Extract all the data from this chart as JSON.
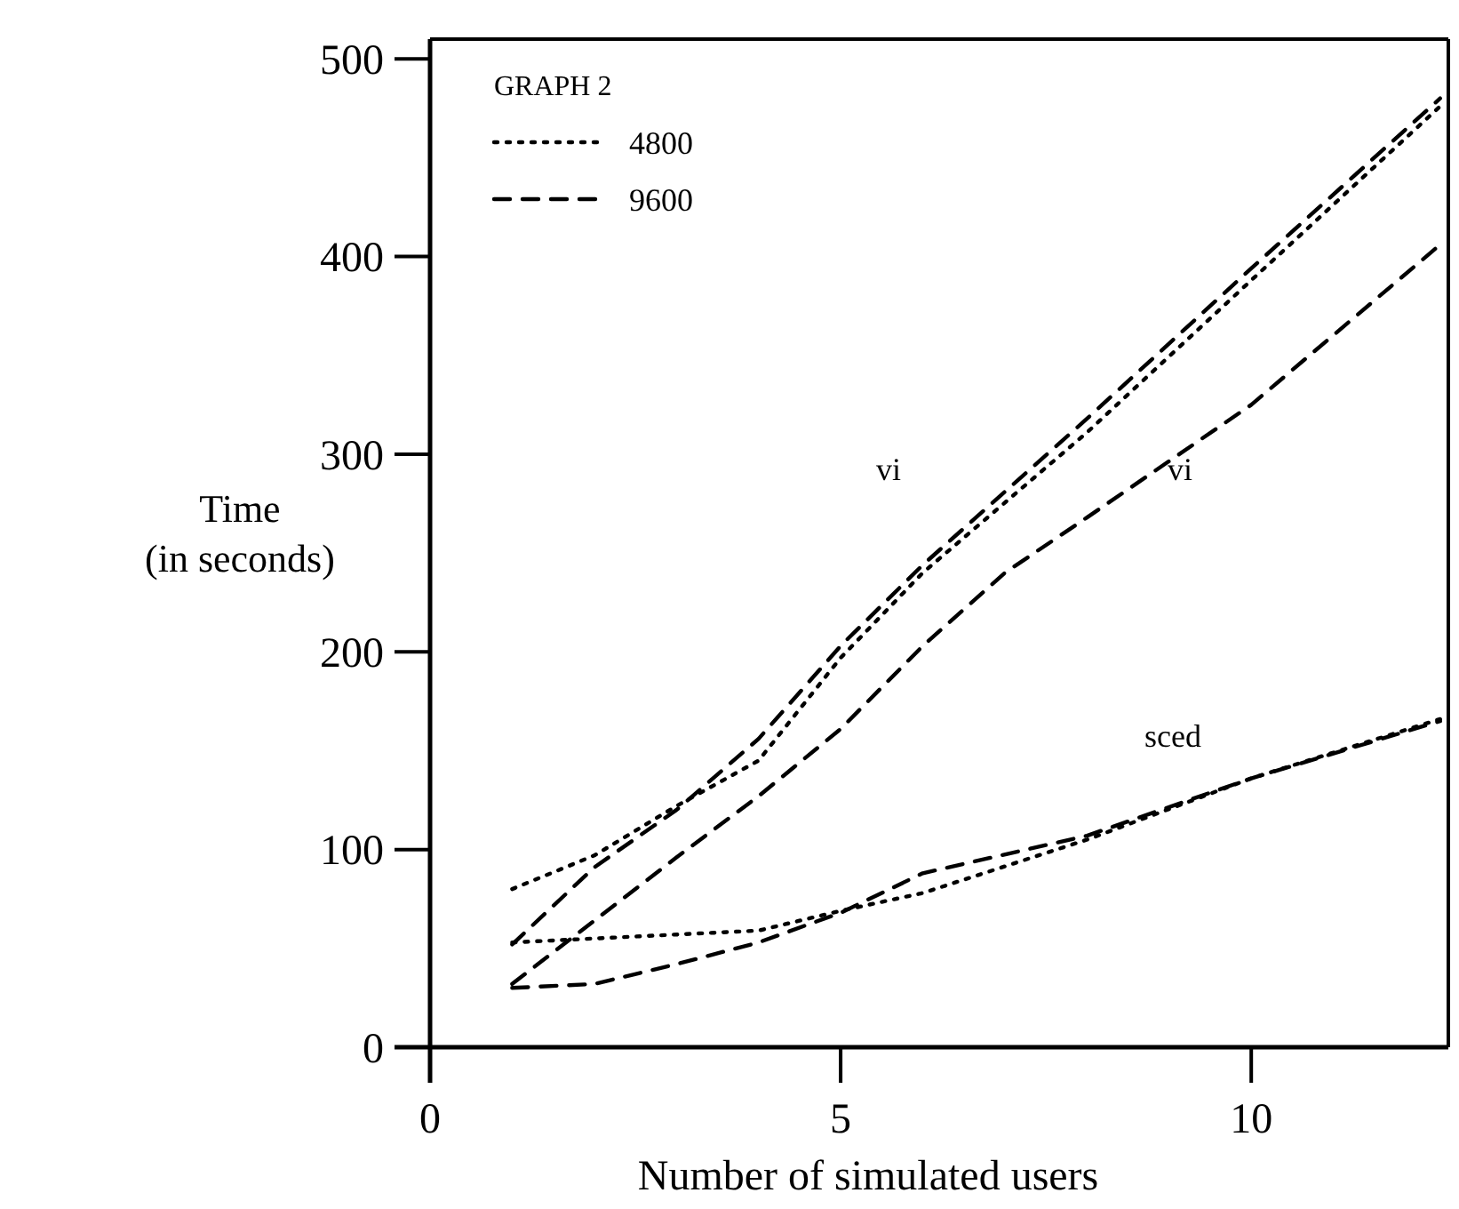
{
  "chart_data": {
    "type": "line",
    "xlabel": "Number of simulated users",
    "ylabel": "Time\n(in seconds)",
    "legend_title": "GRAPH 2",
    "legend": "top left",
    "grid": false,
    "xlim": [
      0,
      12.4
    ],
    "ylim": [
      0,
      510
    ],
    "xticks": [
      0,
      5,
      10
    ],
    "yticks": [
      0,
      100,
      200,
      300,
      400,
      500
    ],
    "x": [
      1,
      2,
      3,
      4,
      5,
      6,
      8,
      10,
      12.3
    ],
    "series": [
      {
        "name": "4800",
        "color": "#000000",
        "line_style": "dotted",
        "values": [
          80,
          97,
          122,
          145,
          197,
          240,
          311,
          388,
          476
        ]
      },
      {
        "name": "9600",
        "color": "#000000",
        "line_style": "dashed",
        "values": [
          52,
          91,
          120,
          156,
          203,
          244,
          318,
          394,
          480
        ]
      },
      {
        "color": "#000000",
        "line_style": "dashed",
        "x": [
          1,
          2,
          3,
          4,
          5,
          6,
          7,
          8,
          10,
          12.3
        ],
        "values": [
          32,
          64,
          96,
          127,
          161,
          203,
          240,
          268,
          325,
          406
        ]
      },
      {
        "color": "#000000",
        "line_style": "dotted",
        "x": [
          1,
          2,
          4,
          5,
          6,
          8,
          10,
          12.3
        ],
        "values": [
          53,
          55,
          59,
          69,
          78,
          105,
          136,
          166
        ]
      },
      {
        "color": "#000000",
        "line_style": "dashed",
        "values": [
          30,
          32,
          42,
          53,
          68,
          88,
          107,
          136,
          165
        ]
      }
    ],
    "annotations": [
      "vi",
      "vi",
      "sced"
    ]
  }
}
